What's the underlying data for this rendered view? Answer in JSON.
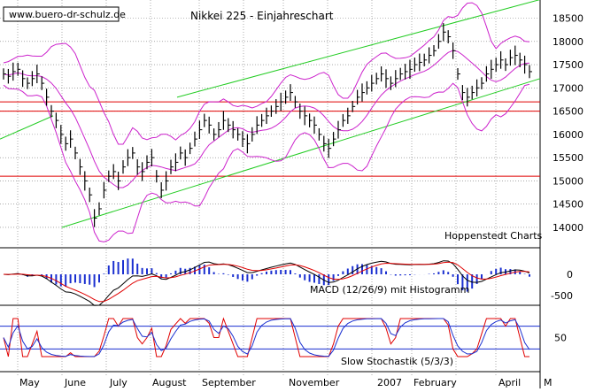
{
  "chart_data": {
    "type": "line",
    "title": "Nikkei 225 - Einjahreschart",
    "source": "www.buero-dr-schulz.de",
    "credit": "Hoppenstedt Charts",
    "x_labels": [
      "May",
      "June",
      "July",
      "August",
      "September",
      "November",
      "2007",
      "February",
      "April",
      "M"
    ],
    "y_price_ticks": [
      18500,
      18000,
      17500,
      17000,
      16500,
      16000,
      15500,
      15000,
      14500,
      14000
    ],
    "y_price_range": [
      13600,
      18700
    ],
    "macd_label": "MACD (12/26/9) mit Histogramm",
    "macd_ticks": [
      "0",
      "-500"
    ],
    "stoch_label": "Slow Stochastik (5/3/3)",
    "stoch_ticks": [
      "50"
    ],
    "horizontal_lines": [
      16700,
      16500,
      15100
    ],
    "channel_upper": {
      "start": 16800,
      "end": 18900
    },
    "channel_middle": {
      "start": 15900,
      "end": 17500
    },
    "channel_lower": {
      "start": 14000,
      "end": 17000
    },
    "close": [
      17300,
      17250,
      17350,
      17400,
      17200,
      17100,
      17200,
      17300,
      17100,
      16800,
      16500,
      16300,
      16000,
      15800,
      15900,
      15600,
      15300,
      15000,
      14700,
      14200,
      14400,
      14800,
      15100,
      15200,
      15000,
      15300,
      15500,
      15600,
      15300,
      15200,
      15400,
      15500,
      15100,
      14800,
      15000,
      15300,
      15400,
      15600,
      15500,
      15700,
      15900,
      16100,
      16300,
      16200,
      16000,
      16100,
      16300,
      16200,
      16100,
      16000,
      15900,
      15800,
      16000,
      16200,
      16300,
      16400,
      16500,
      16600,
      16700,
      16800,
      16900,
      16700,
      16500,
      16400,
      16300,
      16200,
      16000,
      15800,
      15700,
      15900,
      16100,
      16300,
      16400,
      16600,
      16800,
      16900,
      17000,
      17100,
      17200,
      17300,
      17200,
      17100,
      17200,
      17300,
      17350,
      17400,
      17500,
      17550,
      17600,
      17700,
      17800,
      18000,
      18200,
      18100,
      17800,
      17300,
      16900,
      16800,
      16900,
      17000,
      17100,
      17300,
      17400,
      17500,
      17600,
      17500,
      17650,
      17700,
      17600,
      17500,
      17350
    ],
    "macd_ticks_values": [
      0,
      -500
    ],
    "stoch_ref_lines": [
      80,
      20
    ]
  }
}
